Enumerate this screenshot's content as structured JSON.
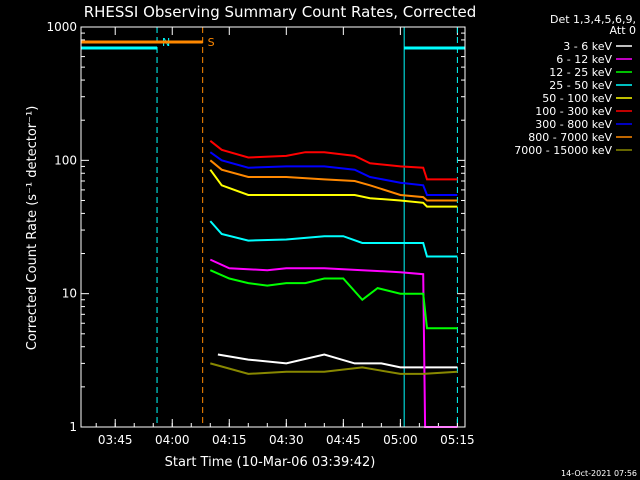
{
  "chart_data": {
    "type": "line",
    "title": "RHESSI Observing Summary Count Rates, Corrected",
    "xlabel": "Start Time (10-Mar-06 03:39:42)",
    "ylabel": "Corrected Count Rate (s⁻¹ detector⁻¹)",
    "ylog": true,
    "ylim": [
      1,
      1000
    ],
    "xlim_min": [
      -4,
      97
    ],
    "grid": false,
    "legend_position": "right",
    "background": "#000000",
    "legend_header": [
      "Det 1,3,4,5,6,9,",
      "Att 0"
    ],
    "x_ticks": [
      {
        "label": "03:45",
        "min": 5
      },
      {
        "label": "04:00",
        "min": 20
      },
      {
        "label": "04:15",
        "min": 35
      },
      {
        "label": "04:30",
        "min": 50
      },
      {
        "label": "04:45",
        "min": 65
      },
      {
        "label": "05:00",
        "min": 80
      },
      {
        "label": "05:15",
        "min": 95
      }
    ],
    "y_ticks": [
      {
        "label": "1",
        "value": 1
      },
      {
        "label": "10",
        "value": 10
      },
      {
        "label": "100",
        "value": 100
      },
      {
        "label": "1000",
        "value": 1000
      }
    ],
    "series": [
      {
        "name": "3 - 6 keV",
        "color": "#ffffff",
        "points": [
          [
            32,
            3.5
          ],
          [
            40,
            3.2
          ],
          [
            50,
            3.0
          ],
          [
            60,
            3.5
          ],
          [
            68,
            3.0
          ],
          [
            75,
            3.0
          ],
          [
            80,
            2.8
          ],
          [
            88,
            2.8
          ],
          [
            95,
            2.8
          ]
        ]
      },
      {
        "name": "6 - 12 keV",
        "color": "#ff00ff",
        "points": [
          [
            30,
            18
          ],
          [
            35,
            15.5
          ],
          [
            45,
            15
          ],
          [
            50,
            15.5
          ],
          [
            60,
            15.5
          ],
          [
            70,
            15
          ],
          [
            80,
            14.5
          ],
          [
            86,
            14
          ],
          [
            86.5,
            1.0
          ],
          [
            95,
            1.0
          ]
        ]
      },
      {
        "name": "12 - 25 keV",
        "color": "#00ff00",
        "points": [
          [
            30,
            15
          ],
          [
            35,
            13
          ],
          [
            40,
            12
          ],
          [
            45,
            11.5
          ],
          [
            50,
            12
          ],
          [
            55,
            12
          ],
          [
            60,
            13
          ],
          [
            65,
            13
          ],
          [
            70,
            9
          ],
          [
            74,
            11
          ],
          [
            80,
            10
          ],
          [
            86,
            10
          ],
          [
            87,
            5.5
          ],
          [
            95,
            5.5
          ]
        ]
      },
      {
        "name": "25 - 50 keV",
        "color": "#00ffff",
        "points": [
          [
            30,
            35
          ],
          [
            33,
            28
          ],
          [
            40,
            25
          ],
          [
            50,
            25.5
          ],
          [
            60,
            27
          ],
          [
            65,
            27
          ],
          [
            70,
            24
          ],
          [
            80,
            24
          ],
          [
            86,
            24
          ],
          [
            87,
            19
          ],
          [
            95,
            19
          ]
        ]
      },
      {
        "name": "50 - 100 keV",
        "color": "#ffff00",
        "points": [
          [
            30,
            85
          ],
          [
            33,
            65
          ],
          [
            40,
            55
          ],
          [
            50,
            55
          ],
          [
            60,
            55
          ],
          [
            68,
            55
          ],
          [
            72,
            52
          ],
          [
            80,
            50
          ],
          [
            86,
            48
          ],
          [
            87,
            45
          ],
          [
            95,
            45
          ]
        ]
      },
      {
        "name": "100 - 300 keV",
        "color": "#ff0000",
        "points": [
          [
            30,
            140
          ],
          [
            33,
            120
          ],
          [
            40,
            105
          ],
          [
            50,
            108
          ],
          [
            55,
            115
          ],
          [
            60,
            115
          ],
          [
            68,
            108
          ],
          [
            72,
            95
          ],
          [
            80,
            90
          ],
          [
            86,
            88
          ],
          [
            87,
            72
          ],
          [
            95,
            72
          ]
        ]
      },
      {
        "name": "300 - 800 keV",
        "color": "#0000ff",
        "points": [
          [
            30,
            115
          ],
          [
            33,
            100
          ],
          [
            40,
            88
          ],
          [
            50,
            90
          ],
          [
            60,
            90
          ],
          [
            68,
            85
          ],
          [
            72,
            75
          ],
          [
            80,
            68
          ],
          [
            86,
            65
          ],
          [
            87,
            55
          ],
          [
            95,
            55
          ]
        ]
      },
      {
        "name": "800 - 7000 keV",
        "color": "#ff8800",
        "points": [
          [
            30,
            100
          ],
          [
            33,
            85
          ],
          [
            40,
            75
          ],
          [
            50,
            75
          ],
          [
            60,
            72
          ],
          [
            68,
            70
          ],
          [
            72,
            65
          ],
          [
            80,
            55
          ],
          [
            86,
            53
          ],
          [
            87,
            50
          ],
          [
            95,
            50
          ]
        ]
      },
      {
        "name": "7000 - 15000 keV",
        "color": "#888800",
        "points": [
          [
            30,
            3.0
          ],
          [
            40,
            2.5
          ],
          [
            50,
            2.6
          ],
          [
            60,
            2.6
          ],
          [
            70,
            2.8
          ],
          [
            80,
            2.5
          ],
          [
            86,
            2.5
          ],
          [
            95,
            2.6
          ]
        ]
      }
    ],
    "annotations": [
      {
        "label": "N",
        "color": "#00ffff",
        "x_min": 16
      },
      {
        "label": "S",
        "color": "#ff8800",
        "x_min": 28
      }
    ],
    "timestamp": "14-Oct-2021 07:56"
  }
}
